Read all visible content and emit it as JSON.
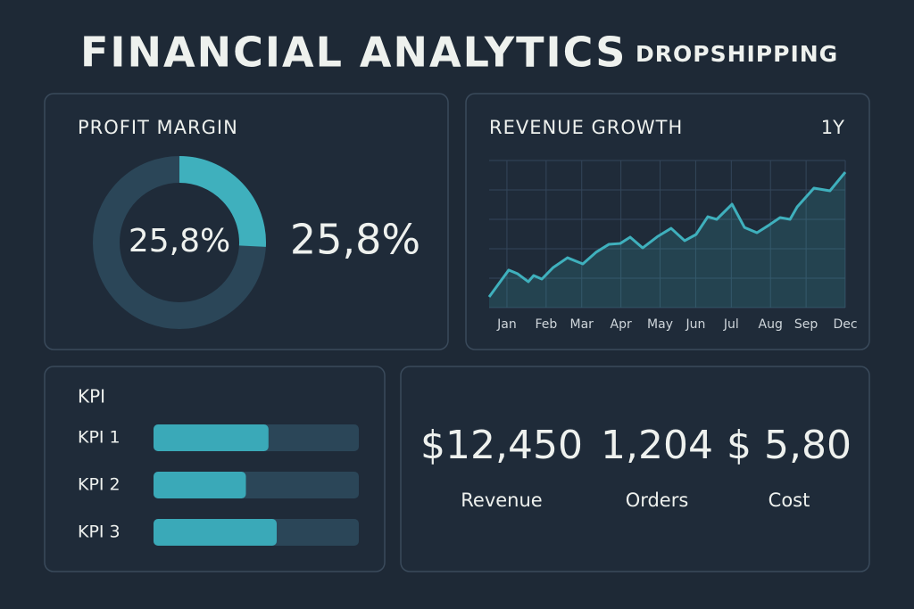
{
  "header": {
    "title": "FINANCIAL ANALYTICS",
    "subtitle": "DROPSHIPPING"
  },
  "chart_data": [
    {
      "type": "donut",
      "title": "PROFIT MARGIN",
      "values": [
        25.8
      ],
      "value_labels": [
        "25,8%"
      ],
      "color": "#3fb0bd"
    },
    {
      "type": "line",
      "title": "REVENUE GROWTH",
      "period": "1Y",
      "color": "#3fb0bd",
      "grid": true,
      "x": [
        0,
        5.5,
        8,
        11,
        12.5,
        14.8,
        18,
        22,
        26.3,
        30,
        33.6,
        36.8,
        39.6,
        43.1,
        47.4,
        51.1,
        54.9,
        58.1,
        61.4,
        63.9,
        68.2,
        71.7,
        75.2,
        78.4,
        81.7,
        84.5,
        86.5,
        91.2,
        95.7,
        100
      ],
      "values": [
        7.3,
        25.5,
        23,
        17.6,
        21.8,
        19.4,
        27.3,
        33.9,
        29.7,
        37.6,
        43,
        43.6,
        47.9,
        40.6,
        48.5,
        53.9,
        45.5,
        49.7,
        61.8,
        60,
        70.3,
        54.5,
        50.9,
        55.8,
        61.2,
        60,
        68.5,
        81.2,
        79.4,
        92.1
      ],
      "xlim": [
        0,
        100
      ],
      "xticks": [
        {
          "value": 5,
          "label": "Jan"
        },
        {
          "value": 16,
          "label": "Feb"
        },
        {
          "value": 26,
          "label": "Mar"
        },
        {
          "value": 37,
          "label": "Apr"
        },
        {
          "value": 48,
          "label": "May"
        },
        {
          "value": 58,
          "label": "Jun"
        },
        {
          "value": 68,
          "label": "Jul"
        },
        {
          "value": 79,
          "label": "Aug"
        },
        {
          "value": 89,
          "label": "Sep"
        },
        {
          "value": 100,
          "label": "Dec"
        }
      ],
      "ylim": [
        0,
        100
      ],
      "yticks": [
        0,
        20,
        40,
        60,
        80,
        100
      ]
    },
    {
      "type": "hbar",
      "title": "KPI",
      "categories": [
        "KPI 1",
        "KPI 2",
        "KPI 3"
      ],
      "values": [
        56,
        45,
        60
      ],
      "xlim": [
        0,
        100
      ],
      "color": "#3aa9b8"
    }
  ],
  "stats": [
    {
      "value": "$12,450",
      "label": "Revenue"
    },
    {
      "value": "1,204",
      "label": "Orders"
    },
    {
      "value": "$ 5,80",
      "label": "Cost"
    }
  ]
}
